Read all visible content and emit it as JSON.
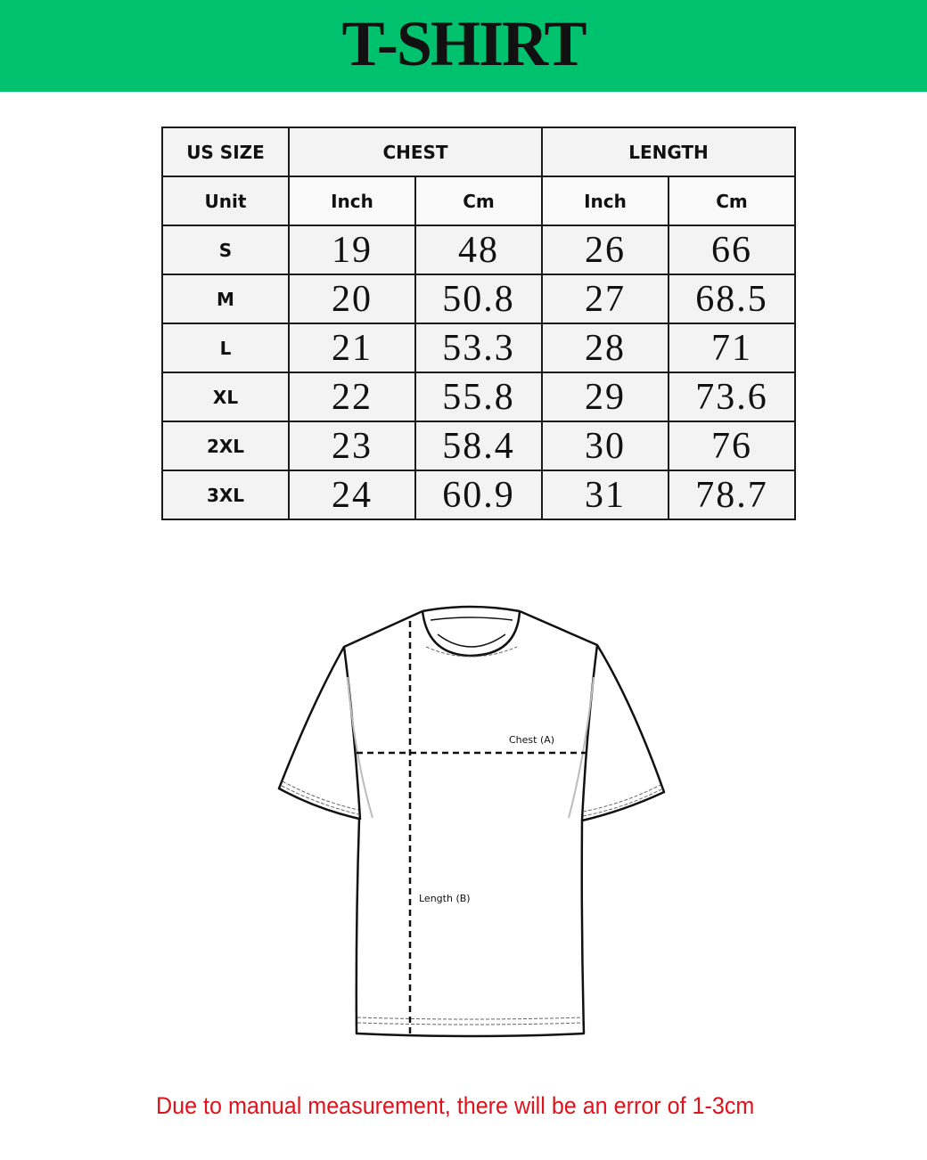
{
  "title": "T-SHIRT",
  "colors": {
    "banner": "#00c16e",
    "note": "#e0121b"
  },
  "table": {
    "header": {
      "size": "US SIZE",
      "chest": "CHEST",
      "length": "LENGTH"
    },
    "units": [
      "Unit",
      "Inch",
      "Cm",
      "Inch",
      "Cm"
    ],
    "rows": [
      {
        "size": "S",
        "chest_in": "19",
        "chest_cm": "48",
        "length_in": "26",
        "length_cm": "66"
      },
      {
        "size": "M",
        "chest_in": "20",
        "chest_cm": "50.8",
        "length_in": "27",
        "length_cm": "68.5"
      },
      {
        "size": "L",
        "chest_in": "21",
        "chest_cm": "53.3",
        "length_in": "28",
        "length_cm": "71"
      },
      {
        "size": "XL",
        "chest_in": "22",
        "chest_cm": "55.8",
        "length_in": "29",
        "length_cm": "73.6"
      },
      {
        "size": "2XL",
        "chest_in": "23",
        "chest_cm": "58.4",
        "length_in": "30",
        "length_cm": "76"
      },
      {
        "size": "3XL",
        "chest_in": "24",
        "chest_cm": "60.9",
        "length_in": "31",
        "length_cm": "78.7"
      }
    ]
  },
  "diagram": {
    "chest_label": "Chest (A)",
    "length_label": "Length (B)"
  },
  "note": "Due to manual measurement, there will be an error of 1-3cm"
}
